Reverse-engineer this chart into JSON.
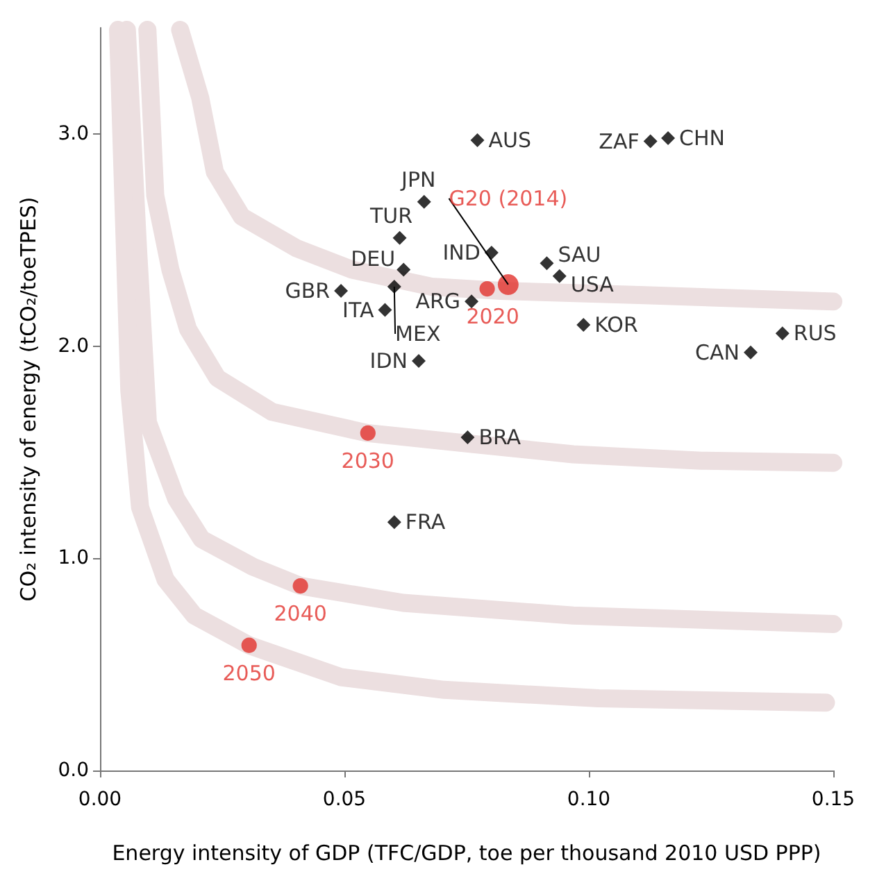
{
  "chart_data": {
    "type": "scatter",
    "xlabel": "Energy intensity of GDP (TFC/GDP, toe per thousand 2010 USD PPP)",
    "ylabel": "CO₂ intensity of energy (tCO₂/toeTPES)",
    "xlim": [
      0,
      0.15
    ],
    "ylim": [
      0,
      3.5
    ],
    "xticks": [
      {
        "value": 0,
        "label": "0.00"
      },
      {
        "value": 0.05,
        "label": "0.05"
      },
      {
        "value": 0.1,
        "label": "0.10"
      },
      {
        "value": 0.15,
        "label": "0.15"
      }
    ],
    "yticks": [
      {
        "value": 0,
        "label": "0.0"
      },
      {
        "value": 1,
        "label": "1.0"
      },
      {
        "value": 2,
        "label": "2.0"
      },
      {
        "value": 3,
        "label": "3.0"
      }
    ],
    "grid": false,
    "series": [
      {
        "type": "line",
        "color": "#ecdfe0",
        "marker": "none",
        "x": [
          0.0164,
          0.0205,
          0.0235,
          0.029,
          0.0403,
          0.0516,
          0.0678,
          0.082,
          0.1114,
          0.15
        ],
        "values": [
          3.49,
          3.17,
          2.82,
          2.61,
          2.46,
          2.36,
          2.28,
          2.26,
          2.24,
          2.21
        ]
      },
      {
        "type": "line",
        "color": "#ecdfe0",
        "marker": "none",
        "x": [
          0.0097,
          0.0113,
          0.0144,
          0.018,
          0.024,
          0.0352,
          0.0547,
          0.0757,
          0.0968,
          0.123,
          0.15
        ],
        "values": [
          3.49,
          2.71,
          2.36,
          2.08,
          1.85,
          1.69,
          1.59,
          1.54,
          1.49,
          1.46,
          1.45
        ]
      },
      {
        "type": "line",
        "color": "#ecdfe0",
        "marker": "none",
        "x": [
          0.0055,
          0.0078,
          0.0098,
          0.0156,
          0.0208,
          0.0313,
          0.041,
          0.062,
          0.0968,
          0.15
        ],
        "values": [
          3.49,
          2.45,
          1.64,
          1.28,
          1.09,
          0.96,
          0.87,
          0.79,
          0.73,
          0.69
        ]
      },
      {
        "type": "line",
        "color": "#ecdfe0",
        "marker": "none",
        "x": [
          0.0037,
          0.006,
          0.0082,
          0.0134,
          0.0193,
          0.0305,
          0.0493,
          0.0704,
          0.102,
          0.1485
        ],
        "values": [
          3.49,
          1.79,
          1.24,
          0.9,
          0.73,
          0.59,
          0.44,
          0.38,
          0.34,
          0.32
        ]
      },
      {
        "color": "#000000",
        "marker": "diamond",
        "x": [
          0.0772,
          0.1126,
          0.1162,
          0.0663,
          0.0613,
          0.0801,
          0.0914,
          0.094,
          0.0621,
          0.0493,
          0.0602,
          0.0583,
          0.076,
          0.0652,
          0.0989,
          0.1331,
          0.1396,
          0.0752,
          0.0602
        ],
        "values": [
          2.97,
          2.965,
          2.98,
          2.68,
          2.51,
          2.44,
          2.39,
          2.33,
          2.36,
          2.26,
          2.28,
          2.17,
          2.21,
          1.93,
          2.1,
          1.97,
          2.06,
          1.57,
          1.17
        ]
      },
      {
        "color": "#e2322d",
        "marker": "circle",
        "x": [
          0.0835,
          0.0792,
          0.0548,
          0.041,
          0.0305
        ],
        "values": [
          2.29,
          2.27,
          1.59,
          0.87,
          0.59
        ],
        "sizes": [
          1,
          0.55,
          0.55,
          0.55,
          0.55
        ]
      }
    ],
    "annotations": [
      {
        "text": "AUS",
        "x": 0.0772,
        "y": 2.97
      },
      {
        "text": "ZAF",
        "x": 0.1126,
        "y": 2.965
      },
      {
        "text": "CHN",
        "x": 0.1162,
        "y": 2.98
      },
      {
        "text": "JPN",
        "x": 0.0663,
        "y": 2.68
      },
      {
        "text": "TUR",
        "x": 0.0613,
        "y": 2.51
      },
      {
        "text": "IND",
        "x": 0.0801,
        "y": 2.44
      },
      {
        "text": "SAU",
        "x": 0.0914,
        "y": 2.39
      },
      {
        "text": "USA",
        "x": 0.094,
        "y": 2.33
      },
      {
        "text": "DEU",
        "x": 0.0621,
        "y": 2.36
      },
      {
        "text": "GBR",
        "x": 0.0493,
        "y": 2.26
      },
      {
        "text": "MEX",
        "x": 0.0602,
        "y": 2.28
      },
      {
        "text": "ITA",
        "x": 0.0583,
        "y": 2.17
      },
      {
        "text": "ARG",
        "x": 0.076,
        "y": 2.21
      },
      {
        "text": "IDN",
        "x": 0.0652,
        "y": 1.93
      },
      {
        "text": "KOR",
        "x": 0.0989,
        "y": 2.1
      },
      {
        "text": "CAN",
        "x": 0.1331,
        "y": 1.97
      },
      {
        "text": "RUS",
        "x": 0.1396,
        "y": 2.06
      },
      {
        "text": "BRA",
        "x": 0.0752,
        "y": 1.57
      },
      {
        "text": "FRA",
        "x": 0.0602,
        "y": 1.17
      },
      {
        "text": "G20 (2014)",
        "x": 0.0835,
        "y": 2.29
      },
      {
        "text": "2020",
        "x": 0.0792,
        "y": 2.27
      },
      {
        "text": "2030",
        "x": 0.0548,
        "y": 1.59
      },
      {
        "text": "2040",
        "x": 0.041,
        "y": 0.87
      },
      {
        "text": "2050",
        "x": 0.0305,
        "y": 0.59
      }
    ]
  }
}
